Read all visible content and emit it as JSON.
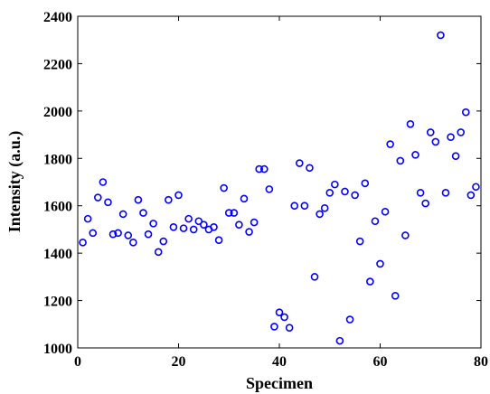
{
  "chart_data": {
    "type": "scatter",
    "xlabel": "Specimen",
    "ylabel": "Intensity (a.u.)",
    "color": "#0000ff",
    "x": [
      1,
      2,
      3,
      4,
      5,
      6,
      7,
      8,
      9,
      10,
      11,
      12,
      13,
      14,
      15,
      16,
      17,
      18,
      19,
      20,
      21,
      22,
      23,
      24,
      25,
      26,
      27,
      28,
      29,
      30,
      31,
      32,
      33,
      34,
      35,
      36,
      37,
      38,
      39,
      40,
      41,
      42,
      43,
      44,
      45,
      46,
      47,
      48,
      49,
      50,
      51,
      52,
      53,
      54,
      55,
      56,
      57,
      58,
      59,
      60,
      61,
      62,
      63,
      64,
      65,
      66,
      67,
      68,
      69,
      70,
      71,
      72,
      73,
      74,
      75,
      76,
      77,
      78,
      79
    ],
    "values": [
      1445,
      1545,
      1485,
      1635,
      1700,
      1615,
      1480,
      1485,
      1565,
      1475,
      1445,
      1625,
      1570,
      1480,
      1525,
      1405,
      1450,
      1625,
      1510,
      1645,
      1505,
      1545,
      1500,
      1535,
      1520,
      1500,
      1510,
      1455,
      1675,
      1570,
      1570,
      1520,
      1630,
      1490,
      1530,
      1755,
      1755,
      1670,
      1090,
      1150,
      1130,
      1085,
      1600,
      1780,
      1600,
      1760,
      1300,
      1565,
      1590,
      1655,
      1690,
      1030,
      1660,
      1120,
      1645,
      1450,
      1695,
      1280,
      1535,
      1355,
      1575,
      1860,
      1220,
      1790,
      1475,
      1945,
      1815,
      1655,
      1610,
      1910,
      1870,
      2320,
      1655,
      1890,
      1810,
      1910,
      1995,
      1645,
      1680
    ],
    "xlim": [
      0,
      80
    ],
    "xticks": [
      0,
      20,
      40,
      60,
      80
    ],
    "ylim": [
      1000,
      2400
    ],
    "yticks": [
      1000,
      1200,
      1400,
      1600,
      1800,
      2000,
      2200,
      2400
    ]
  }
}
